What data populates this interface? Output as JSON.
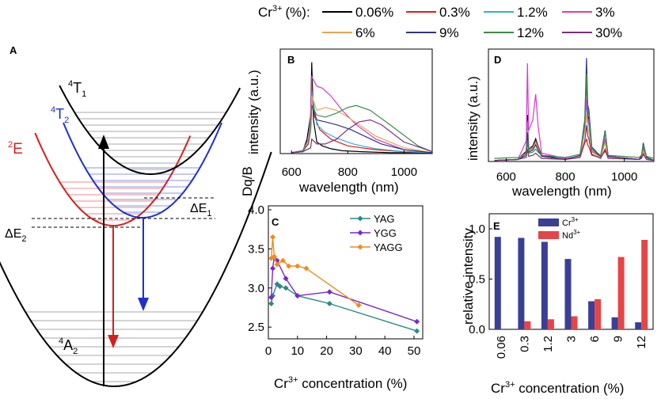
{
  "legend": {
    "prefix": "Cr",
    "prefix_sup": "3+",
    "prefix_unit": "(%):",
    "entries": [
      {
        "label": "0.06%",
        "color": "#000000"
      },
      {
        "label": "0.3%",
        "color": "#e41a1c"
      },
      {
        "label": "1.2%",
        "color": "#3aa9e0"
      },
      {
        "label": "3%",
        "color": "#d23bd2"
      },
      {
        "label": "6%",
        "color": "#e8a64e"
      },
      {
        "label": "9%",
        "color": "#2f3585"
      },
      {
        "label": "12%",
        "color": "#3d8b47"
      },
      {
        "label": "30%",
        "color": "#7b2f7b"
      }
    ]
  },
  "panelA": {
    "letter": "A",
    "states": [
      {
        "base": "T",
        "sup": "4",
        "sub": "1",
        "color": "#000000"
      },
      {
        "base": "T",
        "sup": "4",
        "sub": "2",
        "color": "#1f2fd0"
      },
      {
        "base": "E",
        "sup": "2",
        "sub": "",
        "color": "#d62020"
      },
      {
        "base": "A",
        "sup": "4",
        "sub": "2",
        "color": "#000000"
      }
    ],
    "gaps": [
      {
        "base": "ΔE",
        "sub": "1"
      },
      {
        "base": "ΔE",
        "sub": "2"
      }
    ]
  },
  "chart_data": [
    {
      "panel": "B",
      "type": "line",
      "title": "",
      "xlabel": "wavelength (nm)",
      "ylabel": "intensity (a.u.)",
      "xlim": [
        560,
        1100
      ],
      "xticks": [
        600,
        800,
        1000
      ],
      "yticks": [],
      "series": [
        {
          "name": "0.06%",
          "x": [
            600,
            640,
            655,
            668,
            672,
            678,
            690,
            710,
            740,
            780,
            850,
            950,
            1100
          ],
          "y": [
            0.01,
            0.02,
            0.15,
            0.4,
            0.95,
            0.35,
            0.12,
            0.08,
            0.05,
            0.03,
            0.02,
            0.01,
            0.01
          ]
        },
        {
          "name": "0.3%",
          "x": [
            600,
            640,
            660,
            668,
            672,
            680,
            700,
            740,
            800,
            900,
            1000,
            1100
          ],
          "y": [
            0.01,
            0.02,
            0.12,
            0.3,
            0.7,
            0.4,
            0.25,
            0.15,
            0.08,
            0.04,
            0.02,
            0.01
          ]
        },
        {
          "name": "1.2%",
          "x": [
            600,
            640,
            660,
            668,
            672,
            690,
            720,
            760,
            820,
            900,
            1000,
            1100
          ],
          "y": [
            0.01,
            0.02,
            0.1,
            0.3,
            0.65,
            0.3,
            0.22,
            0.16,
            0.1,
            0.05,
            0.02,
            0.01
          ]
        },
        {
          "name": "3%",
          "x": [
            600,
            640,
            660,
            668,
            672,
            690,
            710,
            740,
            780,
            830,
            900,
            1000,
            1100
          ],
          "y": [
            0.01,
            0.03,
            0.15,
            0.4,
            0.8,
            0.7,
            0.68,
            0.6,
            0.45,
            0.3,
            0.15,
            0.04,
            0.01
          ]
        },
        {
          "name": "6%",
          "x": [
            600,
            640,
            660,
            668,
            672,
            690,
            720,
            760,
            800,
            850,
            900,
            1000,
            1100
          ],
          "y": [
            0.01,
            0.03,
            0.12,
            0.3,
            0.6,
            0.45,
            0.48,
            0.45,
            0.38,
            0.28,
            0.18,
            0.06,
            0.01
          ]
        },
        {
          "name": "9%",
          "x": [
            600,
            640,
            660,
            668,
            672,
            690,
            720,
            760,
            810,
            860,
            920,
            1000,
            1100
          ],
          "y": [
            0.01,
            0.03,
            0.1,
            0.25,
            0.5,
            0.35,
            0.33,
            0.3,
            0.25,
            0.18,
            0.1,
            0.04,
            0.01
          ]
        },
        {
          "name": "12%",
          "x": [
            600,
            640,
            660,
            668,
            672,
            690,
            720,
            760,
            800,
            830,
            880,
            950,
            1050,
            1100
          ],
          "y": [
            0.01,
            0.03,
            0.1,
            0.25,
            0.5,
            0.4,
            0.38,
            0.42,
            0.48,
            0.5,
            0.45,
            0.3,
            0.08,
            0.02
          ]
        },
        {
          "name": "30%",
          "x": [
            600,
            640,
            668,
            672,
            690,
            720,
            760,
            800,
            840,
            880,
            920,
            1000,
            1100
          ],
          "y": [
            0.01,
            0.02,
            0.06,
            0.15,
            0.1,
            0.1,
            0.15,
            0.25,
            0.33,
            0.35,
            0.3,
            0.12,
            0.02
          ]
        }
      ]
    },
    {
      "panel": "D",
      "type": "line",
      "title": "",
      "xlabel": "wavelength (nm)",
      "ylabel": "intensity (a.u.)",
      "xlim": [
        540,
        1100
      ],
      "xticks": [
        600,
        800,
        1000
      ],
      "yticks": [],
      "series": [
        {
          "name": "0.06%",
          "x": [
            560,
            640,
            668,
            672,
            676,
            690,
            700,
            708,
            720,
            800,
            850,
            866,
            870,
            872,
            876,
            880,
            890,
            920,
            935,
            945,
            1050,
            1058,
            1064,
            1075,
            1100
          ],
          "y": [
            0.01,
            0.02,
            0.1,
            0.45,
            0.12,
            0.15,
            0.22,
            0.15,
            0.06,
            0.02,
            0.05,
            0.3,
            0.65,
            0.9,
            0.45,
            0.4,
            0.12,
            0.05,
            0.28,
            0.05,
            0.02,
            0.05,
            0.16,
            0.04,
            0.01
          ]
        },
        {
          "name": "0.3%",
          "x": [
            560,
            640,
            668,
            672,
            676,
            690,
            700,
            708,
            720,
            800,
            850,
            866,
            870,
            872,
            876,
            880,
            890,
            920,
            935,
            945,
            1050,
            1058,
            1064,
            1075,
            1100
          ],
          "y": [
            0.01,
            0.02,
            0.09,
            0.4,
            0.12,
            0.14,
            0.2,
            0.14,
            0.05,
            0.02,
            0.04,
            0.18,
            0.2,
            0.22,
            0.16,
            0.14,
            0.06,
            0.04,
            0.1,
            0.04,
            0.02,
            0.03,
            0.08,
            0.03,
            0.01
          ]
        },
        {
          "name": "1.2%",
          "x": [
            560,
            640,
            668,
            672,
            676,
            690,
            700,
            708,
            720,
            800,
            850,
            866,
            870,
            872,
            876,
            880,
            890,
            920,
            935,
            945,
            1050,
            1058,
            1064,
            1075,
            1100
          ],
          "y": [
            0.01,
            0.02,
            0.08,
            0.38,
            0.11,
            0.13,
            0.19,
            0.13,
            0.05,
            0.02,
            0.04,
            0.35,
            0.5,
            0.55,
            0.4,
            0.35,
            0.1,
            0.04,
            0.2,
            0.04,
            0.02,
            0.04,
            0.12,
            0.03,
            0.01
          ]
        },
        {
          "name": "3%",
          "x": [
            560,
            640,
            668,
            672,
            676,
            690,
            700,
            708,
            720,
            800,
            850,
            866,
            870,
            872,
            876,
            880,
            890,
            920,
            935,
            945,
            1050,
            1058,
            1064,
            1075,
            1100
          ],
          "y": [
            0.01,
            0.02,
            0.2,
            0.95,
            0.3,
            0.4,
            0.65,
            0.35,
            0.08,
            0.03,
            0.05,
            0.3,
            0.55,
            0.6,
            0.42,
            0.38,
            0.1,
            0.04,
            0.22,
            0.04,
            0.02,
            0.04,
            0.12,
            0.03,
            0.01
          ]
        },
        {
          "name": "6%",
          "x": [
            560,
            640,
            668,
            672,
            676,
            690,
            700,
            708,
            720,
            800,
            850,
            866,
            870,
            872,
            876,
            880,
            890,
            920,
            935,
            945,
            1050,
            1058,
            1064,
            1075,
            1100
          ],
          "y": [
            0.01,
            0.02,
            0.07,
            0.3,
            0.1,
            0.12,
            0.18,
            0.12,
            0.05,
            0.02,
            0.05,
            0.3,
            0.4,
            0.45,
            0.32,
            0.28,
            0.09,
            0.04,
            0.18,
            0.04,
            0.02,
            0.04,
            0.1,
            0.03,
            0.01
          ]
        },
        {
          "name": "9%",
          "x": [
            560,
            640,
            668,
            672,
            676,
            690,
            700,
            708,
            720,
            800,
            850,
            866,
            870,
            872,
            876,
            880,
            890,
            920,
            935,
            945,
            1050,
            1058,
            1064,
            1075,
            1100
          ],
          "y": [
            0.01,
            0.02,
            0.06,
            0.28,
            0.09,
            0.11,
            0.16,
            0.11,
            0.05,
            0.02,
            0.06,
            0.4,
            0.8,
            1.0,
            0.55,
            0.5,
            0.14,
            0.05,
            0.3,
            0.05,
            0.02,
            0.05,
            0.18,
            0.04,
            0.01
          ]
        },
        {
          "name": "12%",
          "x": [
            560,
            640,
            668,
            672,
            676,
            690,
            700,
            708,
            720,
            800,
            850,
            866,
            870,
            872,
            876,
            880,
            890,
            920,
            935,
            945,
            1050,
            1058,
            1064,
            1075,
            1100
          ],
          "y": [
            0.03,
            0.04,
            0.06,
            0.2,
            0.08,
            0.09,
            0.12,
            0.09,
            0.06,
            0.04,
            0.07,
            0.35,
            0.7,
            0.85,
            0.5,
            0.45,
            0.12,
            0.06,
            0.28,
            0.06,
            0.04,
            0.06,
            0.16,
            0.05,
            0.03
          ]
        },
        {
          "name": "30%",
          "x": [
            560,
            640,
            668,
            672,
            676,
            690,
            700,
            708,
            720,
            800,
            850,
            866,
            870,
            872,
            876,
            880,
            890,
            920,
            935,
            945,
            1050,
            1058,
            1064,
            1075,
            1100
          ],
          "y": [
            0.01,
            0.02,
            0.04,
            0.12,
            0.05,
            0.06,
            0.08,
            0.06,
            0.03,
            0.02,
            0.04,
            0.2,
            0.3,
            0.35,
            0.25,
            0.22,
            0.07,
            0.03,
            0.12,
            0.03,
            0.02,
            0.03,
            0.07,
            0.02,
            0.01
          ]
        }
      ]
    },
    {
      "panel": "C",
      "type": "line",
      "title": "",
      "xlabel_base": "Cr",
      "xlabel_sup": "3+",
      "xlabel_rest": " concentration (%)",
      "ylabel": "Dq/B",
      "xlim": [
        0,
        53
      ],
      "ylim": [
        2.35,
        4.05
      ],
      "xticks": [
        0,
        10,
        20,
        30,
        40,
        50
      ],
      "yticks": [
        2.5,
        3.0,
        3.5,
        4.0
      ],
      "series": [
        {
          "name": "YAG",
          "color": "#2a8a80",
          "x": [
            1,
            1.5,
            3,
            4,
            6,
            10,
            21,
            51
          ],
          "y": [
            2.8,
            2.9,
            3.05,
            3.02,
            3.0,
            2.9,
            2.8,
            2.45
          ]
        },
        {
          "name": "YGG",
          "color": "#7a28c8",
          "x": [
            1,
            1.5,
            2,
            3,
            6,
            10,
            21,
            51
          ],
          "y": [
            2.88,
            3.25,
            3.4,
            3.35,
            3.12,
            2.9,
            2.95,
            2.57
          ]
        },
        {
          "name": "YAGG",
          "color": "#ef8a1f",
          "x": [
            1,
            1.5,
            2,
            3,
            5,
            7,
            10,
            13,
            31
          ],
          "y": [
            3.38,
            3.65,
            3.4,
            3.3,
            3.35,
            3.28,
            3.28,
            3.25,
            2.78
          ]
        }
      ]
    },
    {
      "panel": "E",
      "type": "bar",
      "title": "",
      "xlabel_base": "Cr",
      "xlabel_sup": "3+",
      "xlabel_rest": " concentration (%)",
      "ylabel": "relative intensity",
      "categories": [
        "0.06",
        "0.3",
        "1.2",
        "3",
        "6",
        "9",
        "12"
      ],
      "ylim": [
        0,
        1.15
      ],
      "yticks": [
        0.0,
        0.5,
        1.0
      ],
      "series": [
        {
          "name": "Cr",
          "sup": "3+",
          "color": "#3a3f96",
          "values": [
            0.92,
            0.91,
            0.87,
            0.7,
            0.28,
            0.12,
            0.07
          ]
        },
        {
          "name": "Nd",
          "sup": "3+",
          "color": "#e64545",
          "values": [
            0.0,
            0.08,
            0.1,
            0.13,
            0.3,
            0.72,
            0.89
          ]
        }
      ]
    }
  ]
}
